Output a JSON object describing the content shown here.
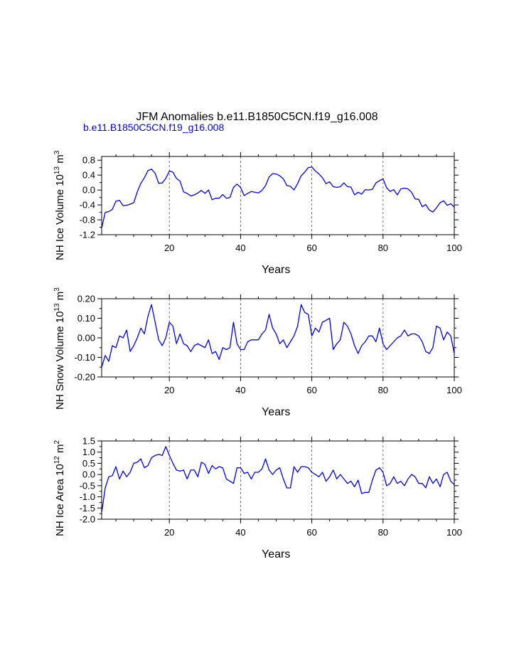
{
  "title": "JFM Anomalies b.e11.B1850C5CN.f19_g16.008",
  "subtitle": "b.e11.B1850C5CN.f19_g16.008",
  "colors": {
    "line": "#0000ff",
    "axis": "#000000",
    "grid": "#555555"
  },
  "chart_data": [
    {
      "type": "line",
      "title": "JFM Anomalies b.e11.B1850C5CN.f19_g16.008",
      "xlabel": "Years",
      "ylabel": "NH Ice Volume 10",
      "ylabel_exp1": "13",
      "ylabel_mid": " m",
      "ylabel_exp2": "3",
      "xlim": [
        1,
        100
      ],
      "ylim": [
        -1.2,
        0.9
      ],
      "xticks": [
        20,
        40,
        60,
        80,
        100
      ],
      "yticks": [
        -1.2,
        -0.8,
        -0.4,
        0.0,
        0.4,
        0.8
      ],
      "ytick_labels": [
        "-1.2",
        "-0.8",
        "-0.4",
        "0.0",
        "0.4",
        "0.8"
      ],
      "vlines": [
        20,
        40,
        60,
        80
      ],
      "series": [
        {
          "name": "b.e11.B1850C5CN.f19_g16.008",
          "values": [
            -1.02,
            -0.6,
            -0.58,
            -0.52,
            -0.3,
            -0.28,
            -0.42,
            -0.41,
            -0.38,
            -0.34,
            -0.05,
            0.18,
            0.33,
            0.52,
            0.56,
            0.45,
            0.18,
            0.19,
            0.31,
            0.51,
            0.48,
            0.31,
            0.24,
            -0.05,
            -0.09,
            -0.16,
            -0.13,
            -0.08,
            -0.01,
            -0.09,
            0.0,
            -0.26,
            -0.22,
            -0.22,
            -0.12,
            -0.22,
            -0.2,
            0.07,
            0.16,
            0.07,
            -0.15,
            -0.09,
            -0.04,
            -0.06,
            -0.08,
            -0.01,
            0.12,
            0.35,
            0.44,
            0.43,
            0.38,
            0.3,
            0.12,
            0.1,
            0.0,
            0.17,
            0.38,
            0.48,
            0.6,
            0.62,
            0.51,
            0.43,
            0.33,
            0.17,
            0.22,
            0.09,
            0.07,
            0.09,
            0.19,
            0.09,
            0.08,
            -0.13,
            -0.06,
            -0.11,
            0.01,
            0.0,
            0.02,
            0.19,
            0.25,
            0.3,
            0.06,
            -0.04,
            0.01,
            -0.13,
            0.03,
            0.05,
            0.03,
            -0.06,
            -0.24,
            -0.25,
            -0.45,
            -0.39,
            -0.54,
            -0.59,
            -0.48,
            -0.34,
            -0.29,
            -0.41,
            -0.37,
            -0.46
          ]
        }
      ]
    },
    {
      "type": "line",
      "xlabel": "Years",
      "ylabel": "NH Snow Volume 10",
      "ylabel_exp1": "13",
      "ylabel_mid": " m",
      "ylabel_exp2": "3",
      "xlim": [
        1,
        100
      ],
      "ylim": [
        -0.2,
        0.2
      ],
      "xticks": [
        20,
        40,
        60,
        80,
        100
      ],
      "yticks": [
        -0.2,
        -0.1,
        0.0,
        0.1,
        0.2
      ],
      "ytick_labels": [
        "-0.20",
        "-0.10",
        "0.00",
        "0.10",
        "0.20"
      ],
      "vlines": [
        20,
        40,
        60,
        80
      ],
      "series": [
        {
          "name": "b.e11.B1850C5CN.f19_g16.008",
          "values": [
            -0.15,
            -0.09,
            -0.12,
            -0.04,
            -0.05,
            0.01,
            0.0,
            0.04,
            -0.07,
            -0.04,
            0.0,
            0.05,
            0.02,
            0.11,
            0.17,
            0.08,
            -0.01,
            -0.04,
            0.0,
            0.08,
            0.06,
            -0.03,
            0.02,
            -0.03,
            -0.04,
            -0.07,
            -0.04,
            -0.03,
            -0.04,
            -0.05,
            -0.01,
            -0.08,
            -0.07,
            -0.11,
            -0.05,
            -0.06,
            -0.05,
            0.08,
            -0.03,
            -0.06,
            -0.06,
            -0.02,
            -0.01,
            -0.01,
            -0.01,
            0.02,
            0.04,
            0.12,
            0.05,
            0.02,
            -0.03,
            -0.01,
            -0.05,
            -0.02,
            0.01,
            0.06,
            0.17,
            0.13,
            0.12,
            0.01,
            0.05,
            0.03,
            0.08,
            0.09,
            0.1,
            -0.06,
            -0.03,
            -0.01,
            0.08,
            0.06,
            0.02,
            -0.04,
            -0.08,
            -0.04,
            -0.02,
            0.01,
            0.01,
            -0.02,
            0.05,
            -0.03,
            -0.06,
            -0.04,
            -0.02,
            0.0,
            0.01,
            0.04,
            0.01,
            0.02,
            0.02,
            0.01,
            -0.02,
            -0.07,
            -0.08,
            -0.05,
            0.06,
            0.05,
            -0.01,
            0.03,
            0.01,
            -0.08
          ]
        }
      ]
    },
    {
      "type": "line",
      "xlabel": "Years",
      "ylabel": "NH Ice Area 10",
      "ylabel_exp1": "12",
      "ylabel_mid": " m",
      "ylabel_exp2": "2",
      "xlim": [
        1,
        100
      ],
      "ylim": [
        -2.0,
        1.5
      ],
      "xticks": [
        20,
        40,
        60,
        80,
        100
      ],
      "yticks": [
        -2.0,
        -1.5,
        -1.0,
        -0.5,
        0.0,
        0.5,
        1.0,
        1.5
      ],
      "ytick_labels": [
        "-2.0",
        "-1.5",
        "-1.0",
        "-0.5",
        "0.0",
        "0.5",
        "1.0",
        "1.5"
      ],
      "vlines": [
        20,
        40,
        60,
        80
      ],
      "series": [
        {
          "name": "b.e11.B1850C5CN.f19_g16.008",
          "values": [
            -1.7,
            -0.6,
            -0.1,
            -0.05,
            0.35,
            -0.2,
            0.15,
            -0.1,
            0.1,
            0.5,
            0.55,
            0.7,
            0.3,
            0.4,
            0.75,
            0.85,
            0.9,
            0.85,
            1.25,
            0.85,
            0.5,
            0.2,
            0.15,
            0.2,
            -0.2,
            0.2,
            0.2,
            -0.1,
            0.55,
            0.45,
            0.05,
            0.4,
            0.25,
            0.35,
            0.3,
            -0.2,
            -0.3,
            -0.4,
            0.3,
            0.3,
            0.05,
            0.1,
            -0.2,
            0.1,
            0.1,
            0.25,
            0.7,
            0.2,
            0.0,
            0.2,
            0.3,
            -0.2,
            -0.6,
            -0.6,
            0.35,
            0.1,
            0.35,
            0.35,
            0.3,
            0.1,
            0.0,
            -0.1,
            0.1,
            -0.3,
            -0.1,
            0.2,
            -0.2,
            0.0,
            -0.2,
            -0.4,
            -0.3,
            -0.55,
            -0.25,
            -0.85,
            -0.8,
            -0.8,
            -0.25,
            0.2,
            0.3,
            0.1,
            -0.5,
            -0.4,
            -0.1,
            -0.4,
            -0.3,
            -0.5,
            -0.2,
            0.0,
            -0.1,
            -0.4,
            -0.4,
            -0.6,
            -0.1,
            -0.4,
            -0.2,
            -0.55,
            0.0,
            0.1,
            -0.3,
            -0.45
          ]
        }
      ]
    }
  ]
}
